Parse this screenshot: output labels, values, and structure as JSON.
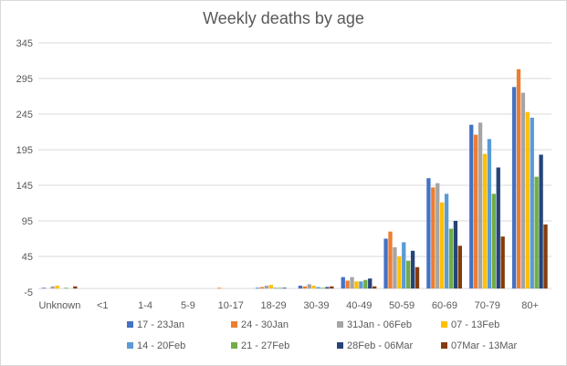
{
  "chart_data": {
    "type": "bar",
    "title": "Weekly deaths by age",
    "xlabel": "",
    "ylabel": "",
    "ylim": [
      -5,
      345
    ],
    "yticks": [
      -5,
      45,
      95,
      145,
      195,
      245,
      295,
      345
    ],
    "grid": true,
    "legend_position": "bottom",
    "categories": [
      "Unknown",
      "<1",
      "1-4",
      "5-9",
      "10-17",
      "18-29",
      "30-39",
      "40-49",
      "50-59",
      "60-69",
      "70-79",
      "80+"
    ],
    "series": [
      {
        "name": "17 - 23Jan",
        "color": "#4472C4",
        "values": [
          1,
          0,
          0,
          0,
          0,
          1,
          4,
          16,
          70,
          155,
          230,
          283
        ]
      },
      {
        "name": "24 - 30Jan",
        "color": "#ED7D31",
        "values": [
          0,
          0,
          0,
          0,
          1,
          2,
          3,
          11,
          80,
          142,
          216,
          308
        ]
      },
      {
        "name": "31Jan - 06Feb",
        "color": "#A5A5A5",
        "values": [
          3,
          0,
          0,
          0,
          0,
          4,
          6,
          16,
          58,
          148,
          233,
          275
        ]
      },
      {
        "name": "07 - 13Feb",
        "color": "#FFC000",
        "values": [
          4,
          0,
          0,
          0,
          0,
          5,
          4,
          10,
          45,
          121,
          189,
          248
        ]
      },
      {
        "name": "14 - 20Feb",
        "color": "#5B9BD5",
        "values": [
          0,
          0,
          0,
          0,
          0,
          1,
          2,
          10,
          65,
          133,
          210,
          240
        ]
      },
      {
        "name": "21 - 27Feb",
        "color": "#70AD47",
        "values": [
          1,
          0,
          0,
          0,
          0,
          1,
          1,
          12,
          39,
          84,
          133,
          157
        ]
      },
      {
        "name": "28Feb - 06Mar",
        "color": "#264478",
        "values": [
          0,
          0,
          0,
          0,
          0,
          1,
          2,
          14,
          53,
          95,
          170,
          188
        ]
      },
      {
        "name": "07Mar - 13Mar",
        "color": "#843C0C",
        "values": [
          3,
          0,
          0,
          0,
          0,
          0,
          3,
          3,
          30,
          60,
          73,
          90
        ]
      }
    ]
  }
}
